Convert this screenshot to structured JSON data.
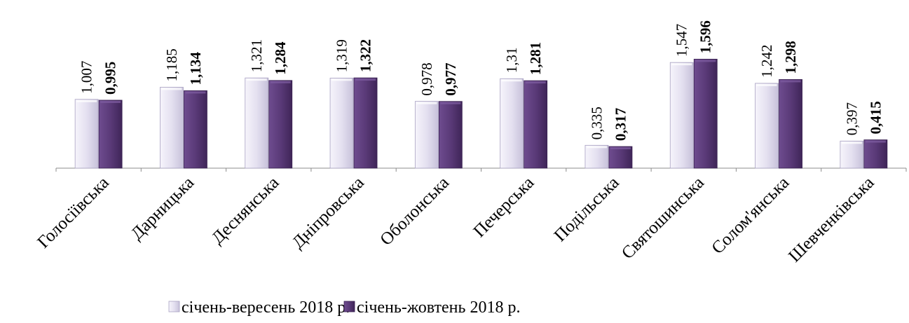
{
  "chart_data": {
    "type": "bar",
    "categories": [
      "Голосіївська",
      "Дарницька",
      "Деснянська",
      "Дніпровська",
      "Оболонська",
      "Печерська",
      "Подільська",
      "Святошинська",
      "Солом'янська",
      "Шевченківська"
    ],
    "series": [
      {
        "name": "січень-вересень 2018 р.",
        "values": [
          1.007,
          1.185,
          1.321,
          1.319,
          0.978,
          1.31,
          0.335,
          1.547,
          1.242,
          0.397
        ],
        "labels": [
          "1,007",
          "1,185",
          "1,321",
          "1,319",
          "0,978",
          "1,31",
          "0,335",
          "1,547",
          "1,242",
          "0,397"
        ],
        "color": "#e2dff0"
      },
      {
        "name": "січень-жовтень 2018 р.",
        "values": [
          0.995,
          1.134,
          1.284,
          1.322,
          0.977,
          1.281,
          0.317,
          1.596,
          1.298,
          0.415
        ],
        "labels": [
          "0,995",
          "1,134",
          "1,284",
          "1,322",
          "0,977",
          "1,281",
          "0,317",
          "1,596",
          "1,298",
          "0,415"
        ],
        "color": "#5b3a78"
      }
    ],
    "ylim": [
      0,
      1.7
    ],
    "grid": false,
    "legend": "bottom"
  }
}
